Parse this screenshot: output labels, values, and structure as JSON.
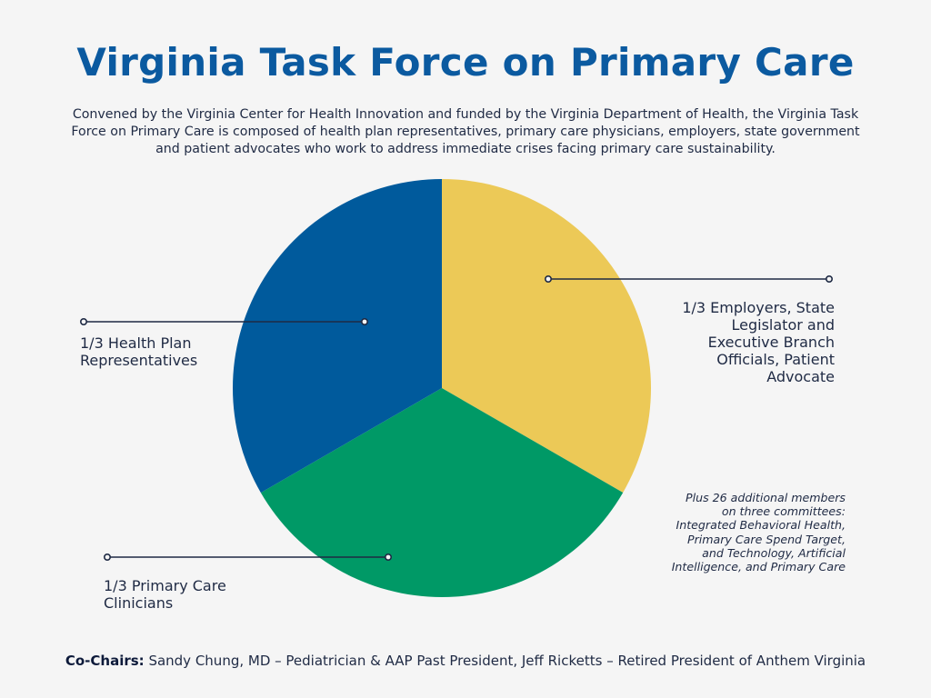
{
  "title": "Virginia Task Force on Primary Care",
  "description": "Convened by the Virginia Center for Health Innovation and funded by the Virginia Department of Health, the Virginia Task Force on Primary Care is composed of health plan representatives, primary care physicians, employers, state government and patient advocates who work to address immediate crises facing primary care sustainability.",
  "colors": {
    "title": "#0b5aa0",
    "text": "#1f2a44",
    "health_plan": "#005a9c",
    "primary_care": "#009966",
    "employers": "#ecc957",
    "leader": "#1f2a44"
  },
  "chart_data": {
    "type": "pie",
    "title": "",
    "slices": [
      {
        "label": "1/3 Employers, State Legislator and Executive Branch Officials, Patient Advocate",
        "value": 0.3333,
        "color": "#ecc957"
      },
      {
        "label": "1/3 Primary Care Clinicians",
        "value": 0.3333,
        "color": "#009966"
      },
      {
        "label": "1/3 Health Plan Representatives",
        "value": 0.3334,
        "color": "#005a9c"
      }
    ]
  },
  "labels": {
    "health_plan": [
      "1/3 Health Plan",
      "Representatives"
    ],
    "primary_care": [
      "1/3 Primary Care",
      "Clinicians"
    ],
    "employers": [
      "1/3 Employers, State",
      "Legislator and",
      "Executive Branch",
      "Officials, Patient",
      "Advocate"
    ]
  },
  "note": [
    "Plus 26 additional members",
    "on three committees:",
    "Integrated Behavioral Health,",
    "Primary Care Spend Target,",
    "and Technology, Artificial",
    "Intelligence, and Primary Care"
  ],
  "footer": {
    "bold": "Co-Chairs:",
    "text": " Sandy Chung, MD – Pediatrician & AAP Past President, Jeff Ricketts – Retired President of Anthem Virginia"
  }
}
